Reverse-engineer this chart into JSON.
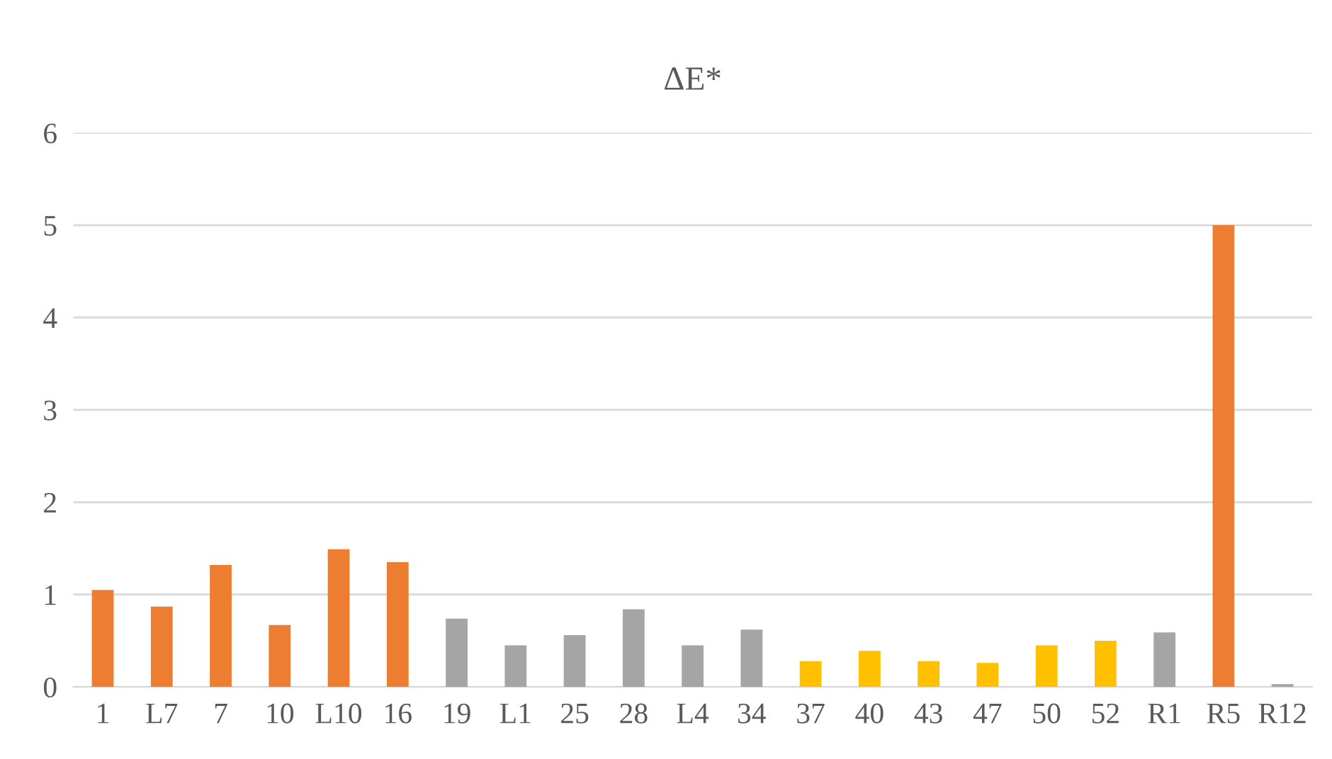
{
  "chart_data": {
    "type": "bar",
    "title": "ΔE*",
    "categories": [
      "1",
      "L7",
      "7",
      "10",
      "L10",
      "16",
      "19",
      "L1",
      "25",
      "28",
      "L4",
      "34",
      "37",
      "40",
      "43",
      "47",
      "50",
      "52",
      "R1",
      "R5",
      "R12"
    ],
    "values": [
      1.05,
      0.87,
      1.32,
      0.67,
      1.49,
      1.35,
      0.74,
      0.45,
      0.56,
      0.84,
      0.45,
      0.62,
      0.28,
      0.39,
      0.28,
      0.26,
      0.45,
      0.5,
      0.59,
      5.0,
      0.03
    ],
    "colors": [
      "#ed7d31",
      "#ed7d31",
      "#ed7d31",
      "#ed7d31",
      "#ed7d31",
      "#ed7d31",
      "#a5a5a5",
      "#a5a5a5",
      "#a5a5a5",
      "#a5a5a5",
      "#a5a5a5",
      "#a5a5a5",
      "#ffc000",
      "#ffc000",
      "#ffc000",
      "#ffc000",
      "#ffc000",
      "#ffc000",
      "#a5a5a5",
      "#ed7d31",
      "#a5a5a5"
    ],
    "ylim": [
      0,
      6
    ],
    "yticks": [
      0,
      1,
      2,
      3,
      4,
      5,
      6
    ],
    "grid": "y"
  }
}
